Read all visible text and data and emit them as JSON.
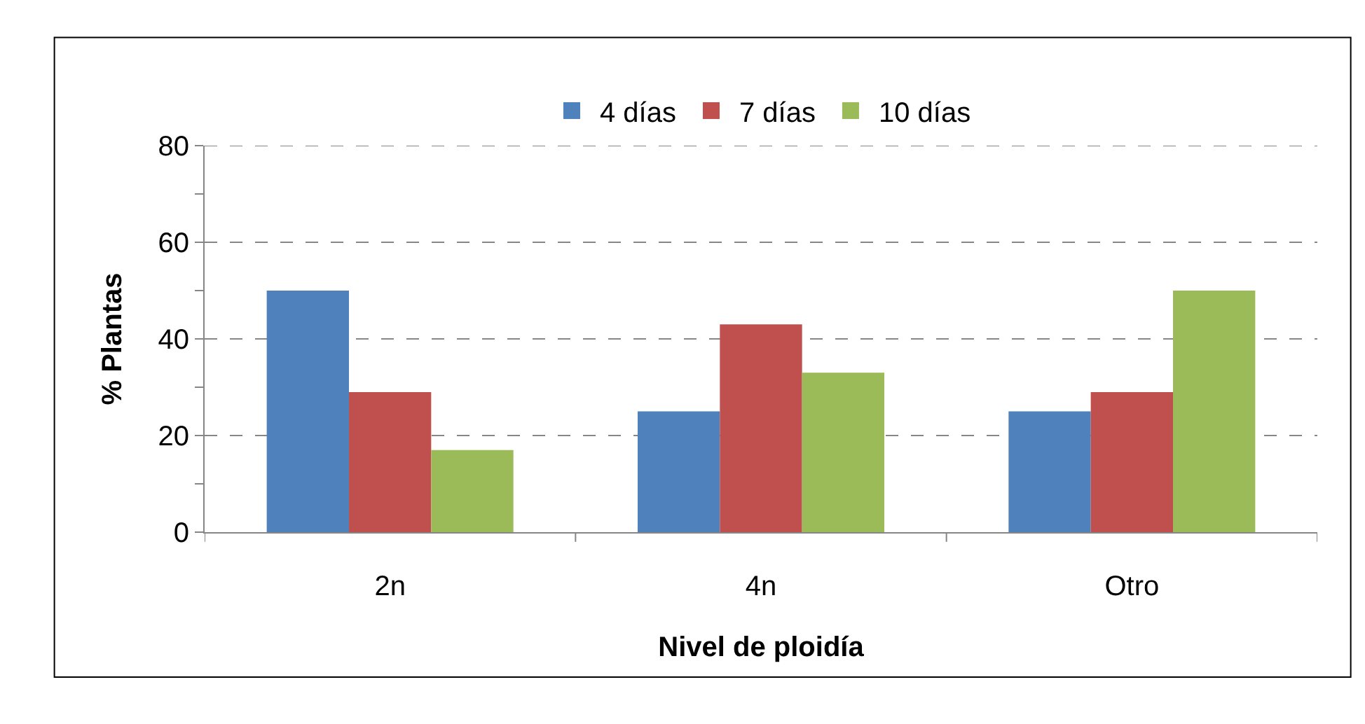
{
  "chart_data": {
    "type": "bar",
    "xlabel": "Nivel de ploidía",
    "ylabel": "% Plantas",
    "categories": [
      "2n",
      "4n",
      "Otro"
    ],
    "series": [
      {
        "name": "4 días",
        "color": "#4f81bd",
        "values": [
          50,
          25,
          25
        ]
      },
      {
        "name": "7 días",
        "color": "#c0504d",
        "values": [
          29,
          43,
          29
        ]
      },
      {
        "name": "10 días",
        "color": "#9bbb59",
        "values": [
          17,
          33,
          50
        ]
      }
    ],
    "ylim": [
      0,
      80
    ],
    "yticks": [
      0,
      {
        "value": 10,
        "label": null
      },
      20,
      {
        "value": 30,
        "label": null
      },
      40,
      {
        "value": 50,
        "label": null
      },
      60,
      {
        "value": 70,
        "label": null
      },
      80
    ],
    "grid": "y",
    "legend": "top"
  }
}
